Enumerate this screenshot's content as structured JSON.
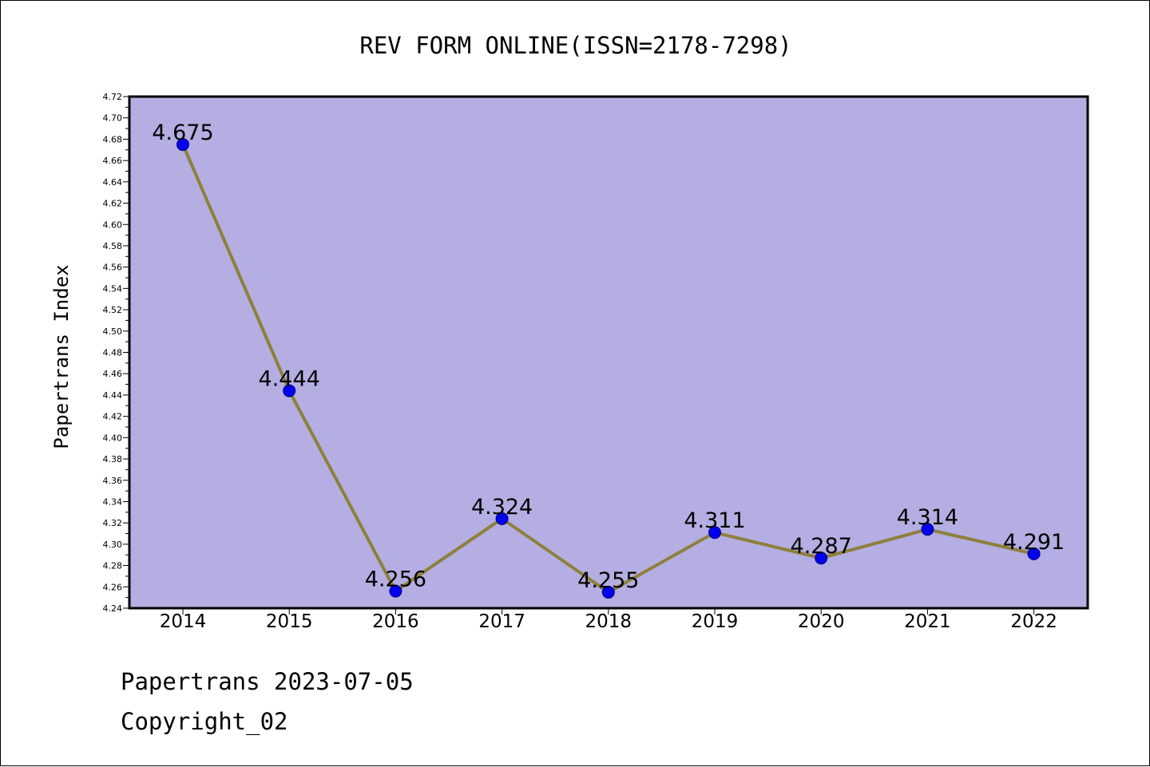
{
  "footer": {
    "line1": "Papertrans 2023-07-05",
    "line2": "Copyright_02"
  },
  "colors": {
    "plot_background": "#b4aee2",
    "line": "#8e7f3b",
    "marker_fill": "#0000ee",
    "marker_stroke": "#000080",
    "axis": "#000000"
  },
  "chart_data": {
    "type": "line",
    "title": "REV FORM ONLINE(ISSN=2178-7298)",
    "xlabel": "",
    "ylabel": "Papertrans Index",
    "categories": [
      "2014",
      "2015",
      "2016",
      "2017",
      "2018",
      "2019",
      "2020",
      "2021",
      "2022"
    ],
    "series": [
      {
        "values": [
          4.675,
          4.444,
          4.256,
          4.324,
          4.255,
          4.311,
          4.287,
          4.314,
          4.291
        ],
        "labels": [
          "4.675",
          "4.444",
          "4.256",
          "4.324",
          "4.255",
          "4.311",
          "4.287",
          "4.314",
          "4.291"
        ]
      }
    ],
    "ylim": [
      4.24,
      4.72
    ],
    "yticks": [
      "4.24",
      "4.26",
      "4.28",
      "4.30",
      "4.32",
      "4.34",
      "4.36",
      "4.38",
      "4.40",
      "4.42",
      "4.44",
      "4.46",
      "4.48",
      "4.50",
      "4.52",
      "4.54",
      "4.56",
      "4.58",
      "4.60",
      "4.62",
      "4.64",
      "4.66",
      "4.68",
      "4.70",
      "4.72"
    ],
    "grid": false,
    "legend": "none"
  }
}
